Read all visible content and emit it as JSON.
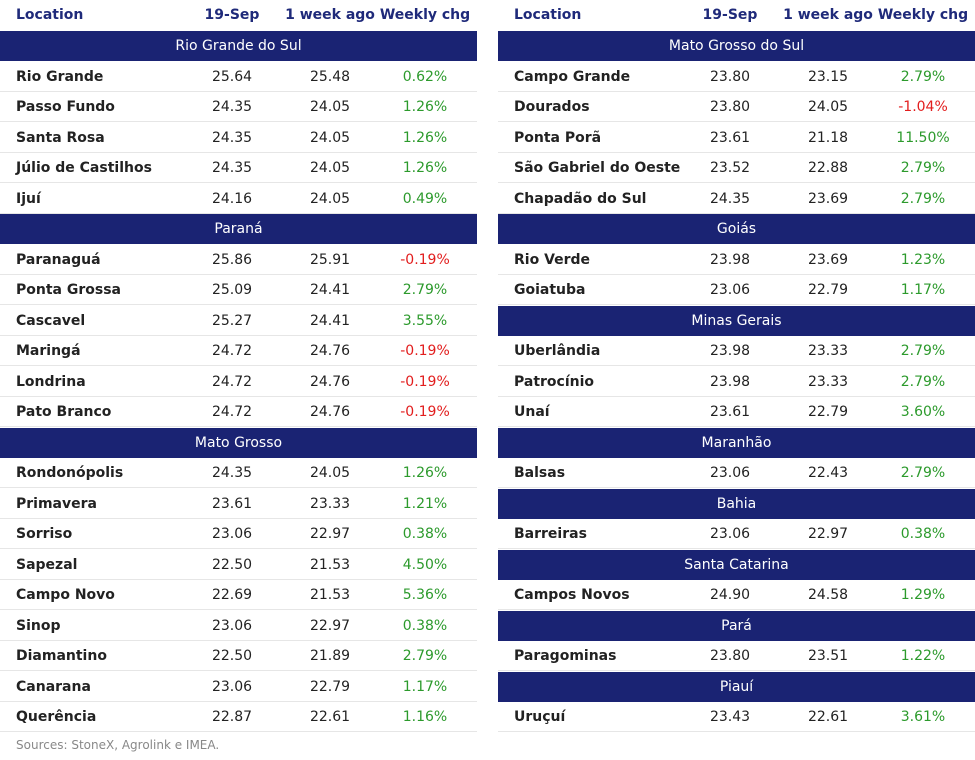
{
  "tables": [
    {
      "header": [
        "Location",
        "19-Sep",
        "1 week ago",
        "Weekly chg"
      ],
      "groups": [
        {
          "title": "Rio Grande do Sul",
          "rows": [
            [
              "Rio Grande",
              "25.64",
              "25.48",
              "0.62%"
            ],
            [
              "Passo Fundo",
              "24.35",
              "24.05",
              "1.26%"
            ],
            [
              "Santa Rosa",
              "24.35",
              "24.05",
              "1.26%"
            ],
            [
              "Júlio de Castilhos",
              "24.35",
              "24.05",
              "1.26%"
            ],
            [
              "Ijuí",
              "24.16",
              "24.05",
              "0.49%"
            ]
          ]
        },
        {
          "title": "Paraná",
          "rows": [
            [
              "Paranaguá",
              "25.86",
              "25.91",
              "-0.19%"
            ],
            [
              "Ponta Grossa",
              "25.09",
              "24.41",
              "2.79%"
            ],
            [
              "Cascavel",
              "25.27",
              "24.41",
              "3.55%"
            ],
            [
              "Maringá",
              "24.72",
              "24.76",
              "-0.19%"
            ],
            [
              "Londrina",
              "24.72",
              "24.76",
              "-0.19%"
            ],
            [
              "Pato Branco",
              "24.72",
              "24.76",
              "-0.19%"
            ]
          ]
        },
        {
          "title": "Mato Grosso",
          "rows": [
            [
              "Rondonópolis",
              "24.35",
              "24.05",
              "1.26%"
            ],
            [
              "Primavera",
              "23.61",
              "23.33",
              "1.21%"
            ],
            [
              "Sorriso",
              "23.06",
              "22.97",
              "0.38%"
            ],
            [
              "Sapezal",
              "22.50",
              "21.53",
              "4.50%"
            ],
            [
              "Campo Novo",
              "22.69",
              "21.53",
              "5.36%"
            ],
            [
              "Sinop",
              "23.06",
              "22.97",
              "0.38%"
            ],
            [
              "Diamantino",
              "22.50",
              "21.89",
              "2.79%"
            ],
            [
              "Canarana",
              "23.06",
              "22.79",
              "1.17%"
            ],
            [
              "Querência",
              "22.87",
              "22.61",
              "1.16%"
            ]
          ]
        }
      ]
    },
    {
      "header": [
        "Location",
        "19-Sep",
        "1 week ago",
        "Weekly chg"
      ],
      "groups": [
        {
          "title": "Mato Grosso do Sul",
          "rows": [
            [
              "Campo Grande",
              "23.80",
              "23.15",
              "2.79%"
            ],
            [
              "Dourados",
              "23.80",
              "24.05",
              "-1.04%"
            ],
            [
              "Ponta Porã",
              "23.61",
              "21.18",
              "11.50%"
            ],
            [
              "São Gabriel do Oeste",
              "23.52",
              "22.88",
              "2.79%"
            ],
            [
              "Chapadão do Sul",
              "24.35",
              "23.69",
              "2.79%"
            ]
          ]
        },
        {
          "title": "Goiás",
          "rows": [
            [
              "Rio Verde",
              "23.98",
              "23.69",
              "1.23%"
            ],
            [
              "Goiatuba",
              "23.06",
              "22.79",
              "1.17%"
            ]
          ]
        },
        {
          "title": "Minas Gerais",
          "rows": [
            [
              "Uberlândia",
              "23.98",
              "23.33",
              "2.79%"
            ],
            [
              "Patrocínio",
              "23.98",
              "23.33",
              "2.79%"
            ],
            [
              "Unaí",
              "23.61",
              "22.79",
              "3.60%"
            ]
          ]
        },
        {
          "title": "Maranhão",
          "rows": [
            [
              "Balsas",
              "23.06",
              "22.43",
              "2.79%"
            ]
          ]
        },
        {
          "title": "Bahia",
          "rows": [
            [
              "Barreiras",
              "23.06",
              "22.97",
              "0.38%"
            ]
          ]
        },
        {
          "title": "Santa Catarina",
          "rows": [
            [
              "Campos Novos",
              "24.90",
              "24.58",
              "1.29%"
            ]
          ]
        },
        {
          "title": "Pará",
          "rows": [
            [
              "Paragominas",
              "23.80",
              "23.51",
              "1.22%"
            ]
          ]
        },
        {
          "title": "Piauí",
          "rows": [
            [
              "Uruçuí",
              "23.43",
              "22.61",
              "3.61%"
            ]
          ]
        }
      ]
    }
  ],
  "source": "Sources: StoneX, Agrolink e IMEA."
}
